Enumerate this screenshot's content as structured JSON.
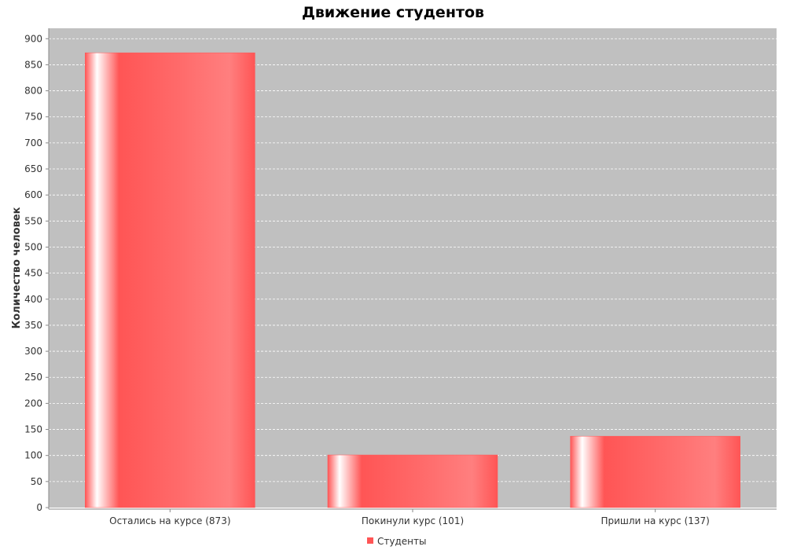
{
  "chart_data": {
    "type": "bar",
    "title": "Движение студентов",
    "xlabel": "",
    "ylabel": "Количество человек",
    "categories": [
      "Остались на курсе (873)",
      "Покинули курс (101)",
      "Пришли на курс (137)"
    ],
    "series": [
      {
        "name": "Студенты",
        "values": [
          873,
          101,
          137
        ]
      }
    ],
    "ylim": [
      0,
      920
    ],
    "yticks": [
      0,
      50,
      100,
      150,
      200,
      250,
      300,
      350,
      400,
      450,
      500,
      550,
      600,
      650,
      700,
      750,
      800,
      850,
      900
    ],
    "grid": true,
    "legend_position": "bottom-center",
    "colors": {
      "bar": "#ff5555",
      "plot_background": "#c0c0c0",
      "gridline": "#ffffff"
    }
  }
}
